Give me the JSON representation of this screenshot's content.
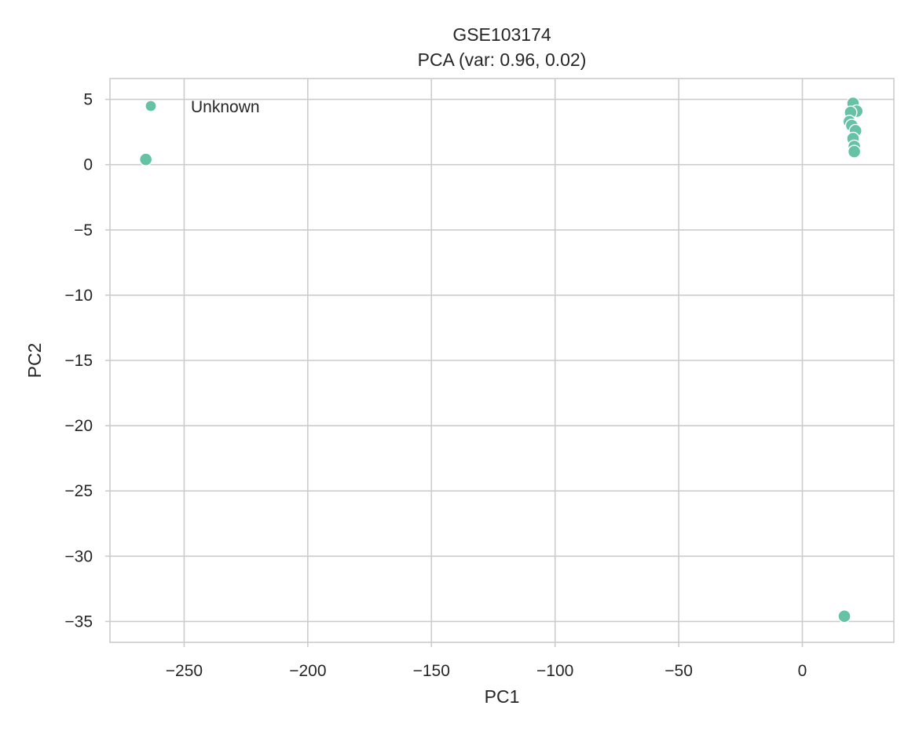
{
  "chart_data": {
    "type": "scatter",
    "title": "GSE103174",
    "subtitle": "PCA (var: 0.96, 0.02)",
    "xlabel": "PC1",
    "ylabel": "PC2",
    "xlim": [
      -280,
      37
    ],
    "ylim": [
      -36.6,
      6.6
    ],
    "xticks": [
      -250,
      -200,
      -150,
      -100,
      -50,
      0
    ],
    "yticks": [
      5,
      0,
      -5,
      -10,
      -15,
      -20,
      -25,
      -30,
      -35
    ],
    "xtick_labels": [
      "−250",
      "−200",
      "−150",
      "−100",
      "−50",
      "0"
    ],
    "ytick_labels": [
      "5",
      "0",
      "−5",
      "−10",
      "−15",
      "−20",
      "−25",
      "−30",
      "−35"
    ],
    "grid": true,
    "legend_position": "top-left",
    "series": [
      {
        "name": "Unknown",
        "color": "#66c2a5",
        "points": [
          {
            "x": -265.5,
            "y": 0.4
          },
          {
            "x": 17.0,
            "y": -34.6
          },
          {
            "x": 20.5,
            "y": 4.7
          },
          {
            "x": 22.0,
            "y": 4.1
          },
          {
            "x": 19.5,
            "y": 4.0
          },
          {
            "x": 19.0,
            "y": 3.3
          },
          {
            "x": 20.0,
            "y": 3.0
          },
          {
            "x": 21.5,
            "y": 2.6
          },
          {
            "x": 20.5,
            "y": 2.0
          },
          {
            "x": 21.0,
            "y": 1.4
          },
          {
            "x": 21.0,
            "y": 1.0
          }
        ]
      }
    ]
  }
}
